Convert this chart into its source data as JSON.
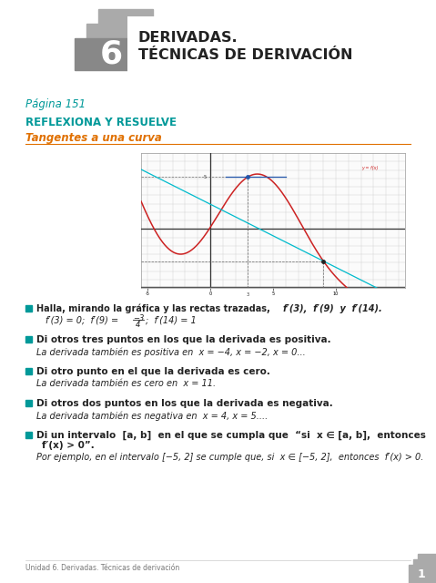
{
  "title_number": "6",
  "title_line1": "DERIVADAS.",
  "title_line2": "TÉCNICAS DE DERIVACIÓN",
  "page_label": "Página 151",
  "section1": "REFLEXIONA Y RESUELVE",
  "subsection1": "Tangentes a una curva",
  "q2_answer": "La derivada también es positiva en  x = −4, x = −2, x = 0...",
  "q3_answer": "La derivada también es cero en  x = 11.",
  "q4_answer": "La derivada también es negativa en  x = 4, x = 5....",
  "q5_answer": "Por ejemplo, en el intervalo [−5, 2] se cumple que, si  x ∈ [−5, 2],  entonces  f′(x) > 0.",
  "footer": "Unidad 6. Derivadas. Técnicas de derivación",
  "page_num": "1",
  "color_teal": "#009999",
  "color_orange": "#E07000",
  "color_gray_header": "#AAAAAA",
  "color_dark": "#222222",
  "color_teal_bullet": "#009999",
  "bg_white": "#FFFFFF"
}
